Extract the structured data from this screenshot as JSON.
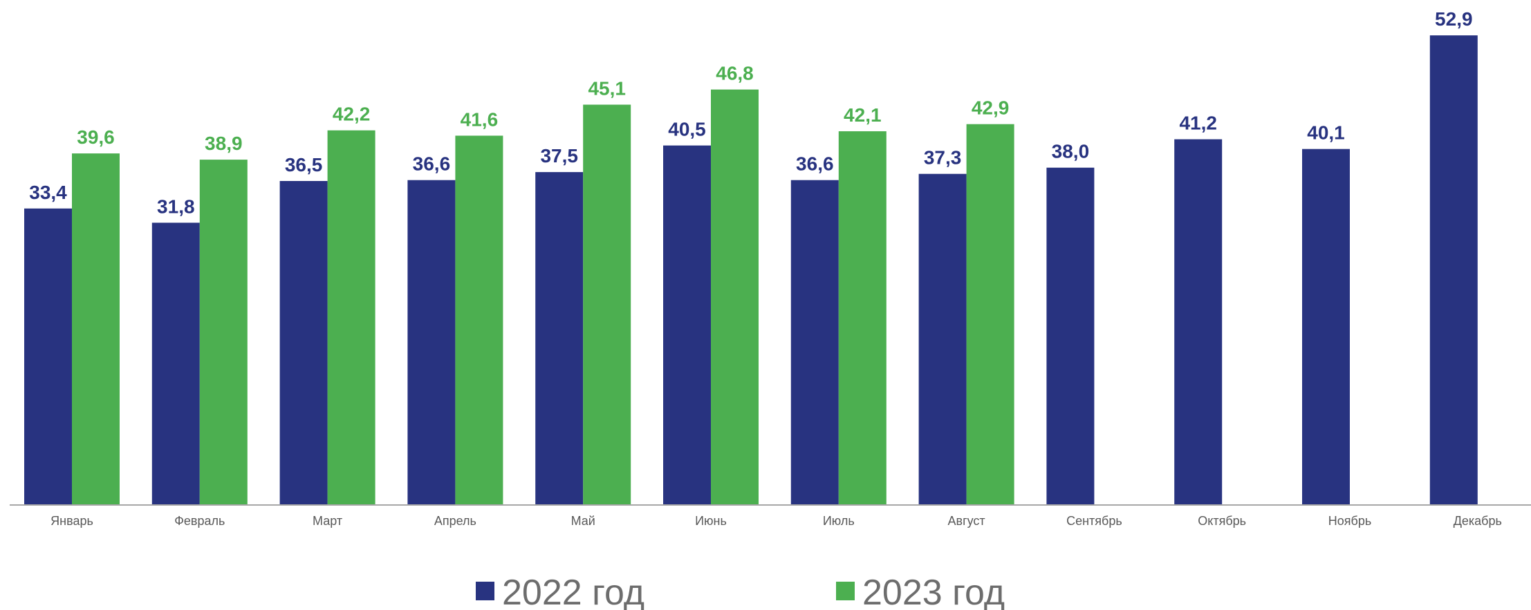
{
  "chart_data": {
    "type": "bar",
    "categories": [
      "Январь",
      "Февраль",
      "Март",
      "Апрель",
      "Май",
      "Июнь",
      "Июль",
      "Август",
      "Сентябрь",
      "Октябрь",
      "Ноябрь",
      "Декабрь"
    ],
    "series": [
      {
        "name": "2022 год",
        "color": "#283380",
        "values": [
          33.4,
          31.8,
          36.5,
          36.6,
          37.5,
          40.5,
          36.6,
          37.3,
          38.0,
          41.2,
          40.1,
          52.9
        ],
        "labels": [
          "33,4",
          "31,8",
          "36,5",
          "36,6",
          "37,5",
          "40,5",
          "36,6",
          "37,3",
          "38,0",
          "41,2",
          "40,1",
          "52,9"
        ]
      },
      {
        "name": "2023 год",
        "color": "#4caf50",
        "values": [
          39.6,
          38.9,
          42.2,
          41.6,
          45.1,
          46.8,
          42.1,
          42.9,
          null,
          null,
          null,
          null
        ],
        "labels": [
          "39,6",
          "38,9",
          "42,2",
          "41,6",
          "45,1",
          "46,8",
          "42,1",
          "42,9",
          null,
          null,
          null,
          null
        ]
      }
    ],
    "title": "",
    "xlabel": "",
    "ylabel": "",
    "ylim": [
      0,
      55
    ],
    "grid": false,
    "legend_position": "bottom"
  }
}
